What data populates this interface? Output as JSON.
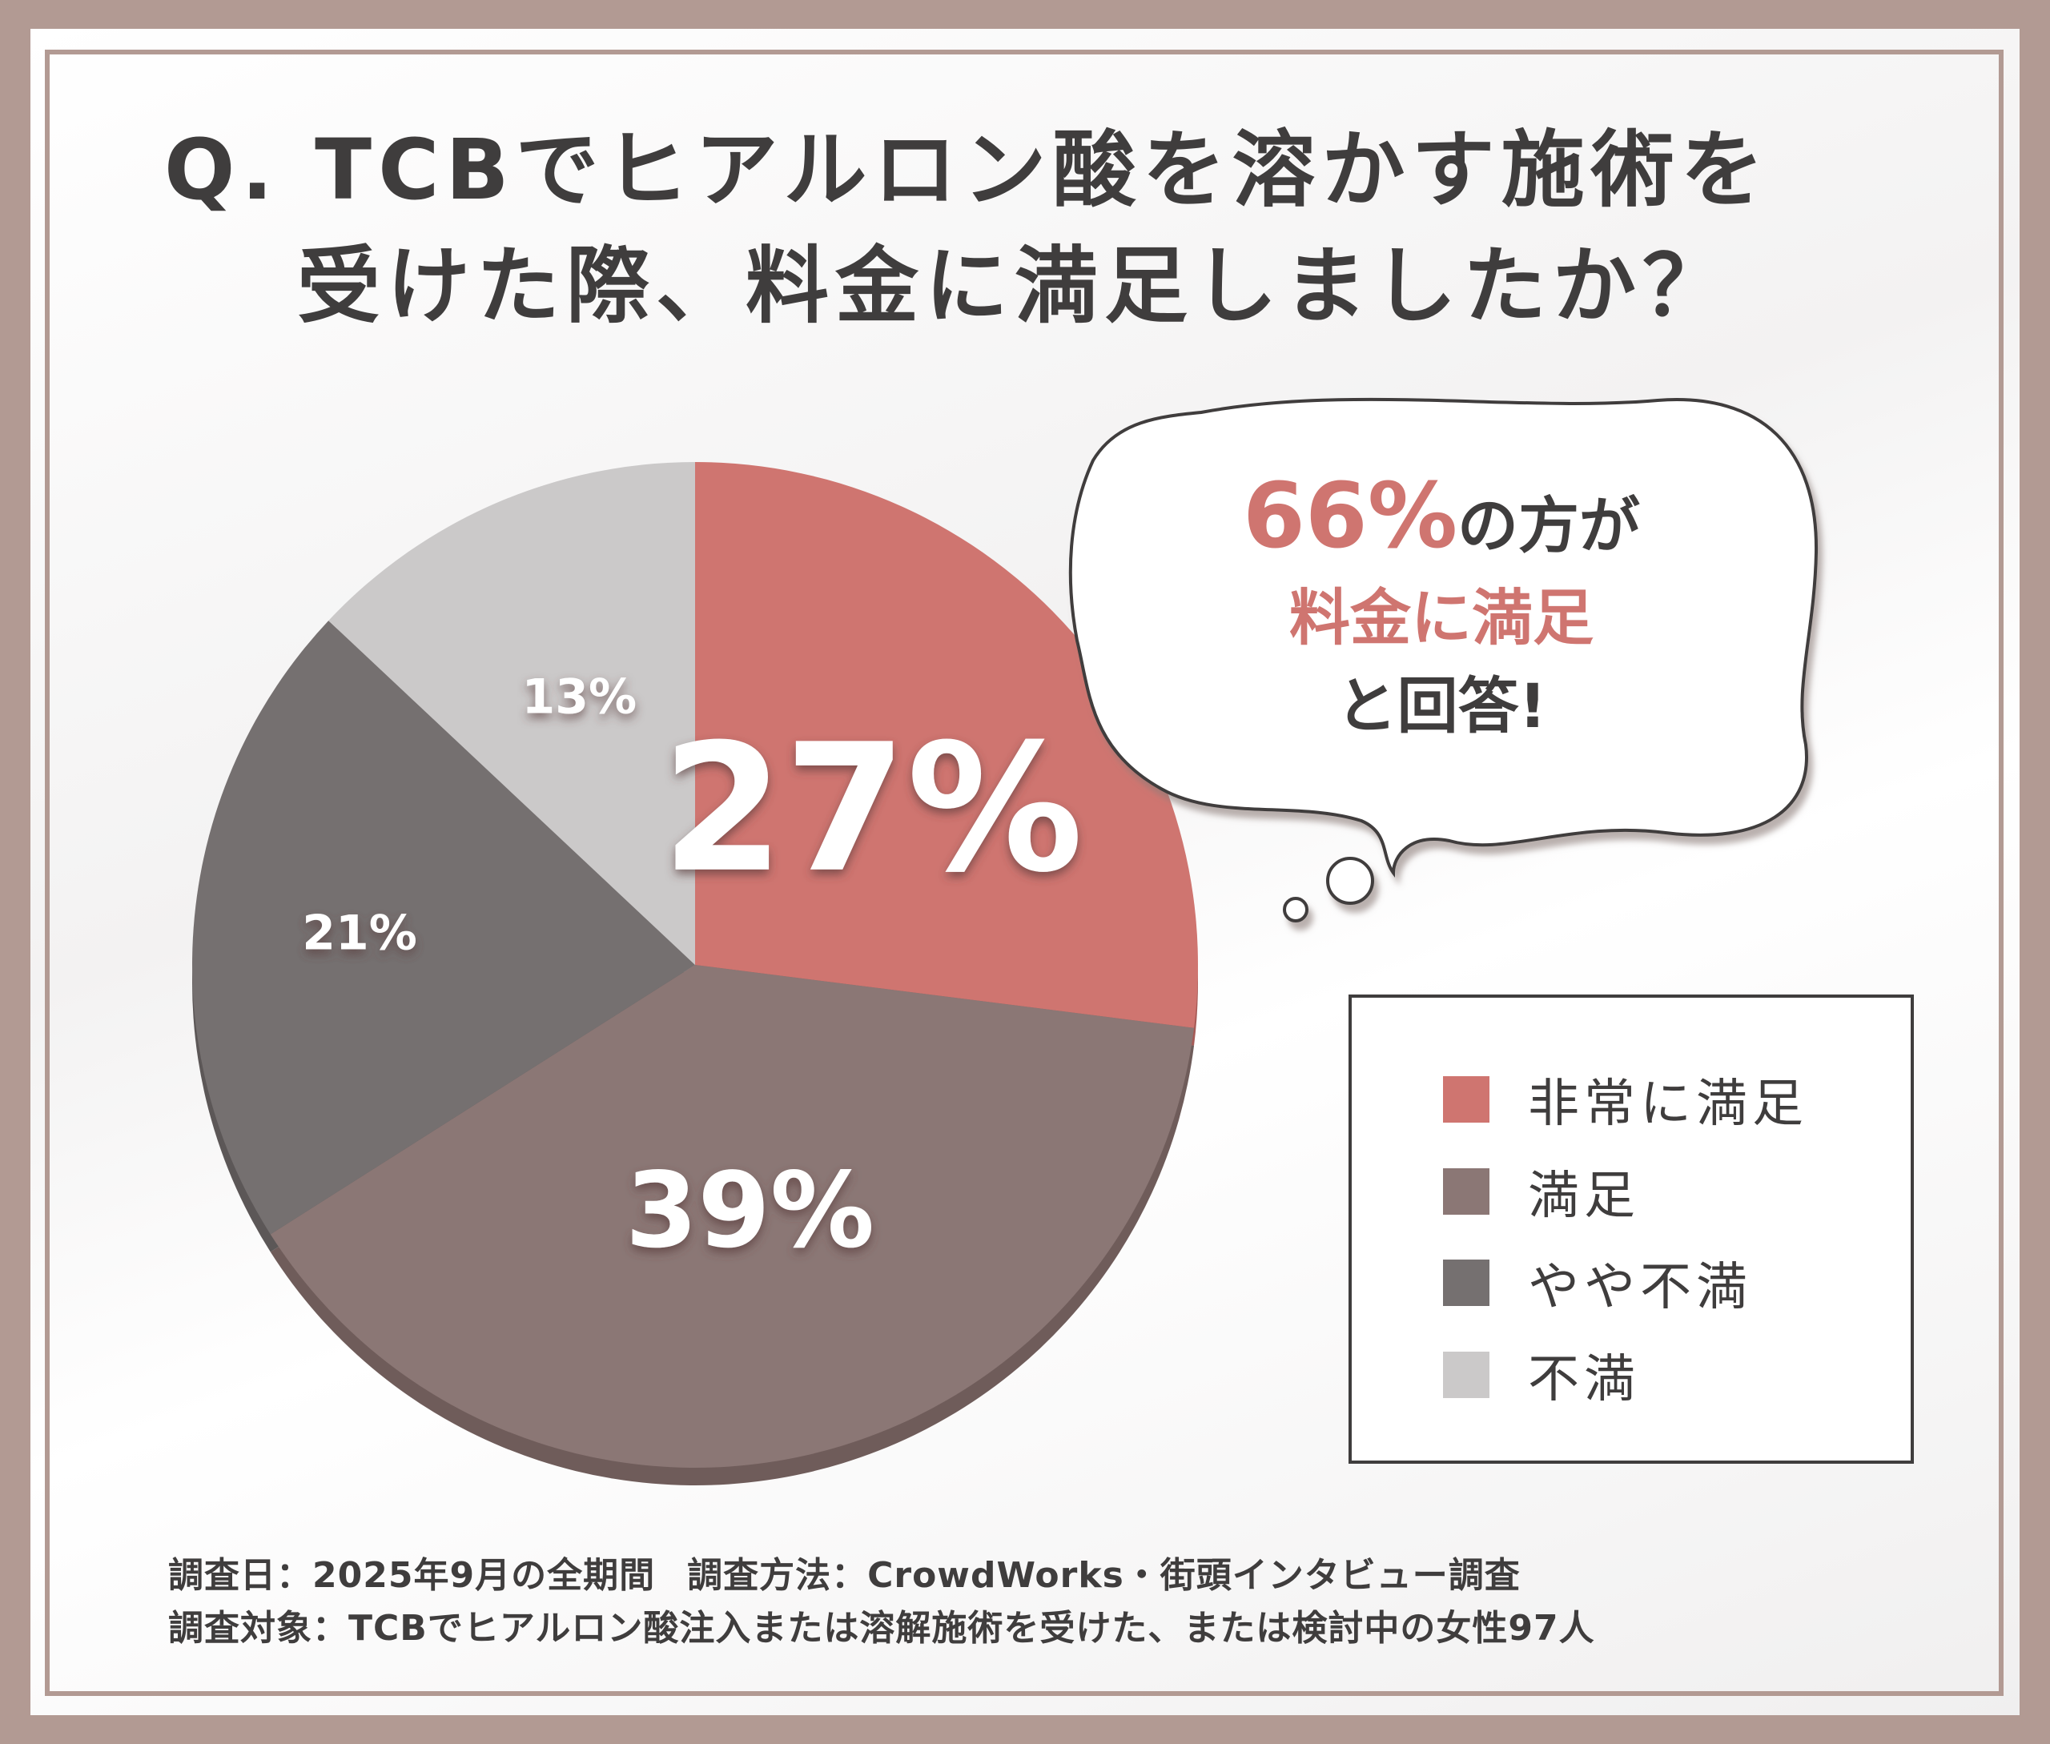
{
  "title": {
    "line1": "Q. TCBでヒアルロン酸を溶かす施術を",
    "line2": "受けた際、料金に満足しましたか？"
  },
  "callout": {
    "highlight": "66%",
    "suffix": "の方が",
    "accent": "料金に満足",
    "ending": "と回答!"
  },
  "chart_data": {
    "type": "pie",
    "start": "12 o'clock",
    "direction": "clockwise",
    "categories": [
      "非常に満足",
      "満足",
      "やや不満",
      "不満"
    ],
    "values": [
      27,
      39,
      21,
      13
    ],
    "labels": [
      "27%",
      "39%",
      "21%",
      "13%"
    ],
    "colors": [
      "#cf7570",
      "#8b7775",
      "#757070",
      "#cbc9c9"
    ],
    "legend_position": "right"
  },
  "footer": {
    "date": "調査日：2025年9月の全期間",
    "method": "調査方法：CrowdWorks・街頭インタビュー調査",
    "target": "調査対象：TCBでヒアルロン酸注入または溶解施術を受けた、または検討中の女性97人"
  }
}
